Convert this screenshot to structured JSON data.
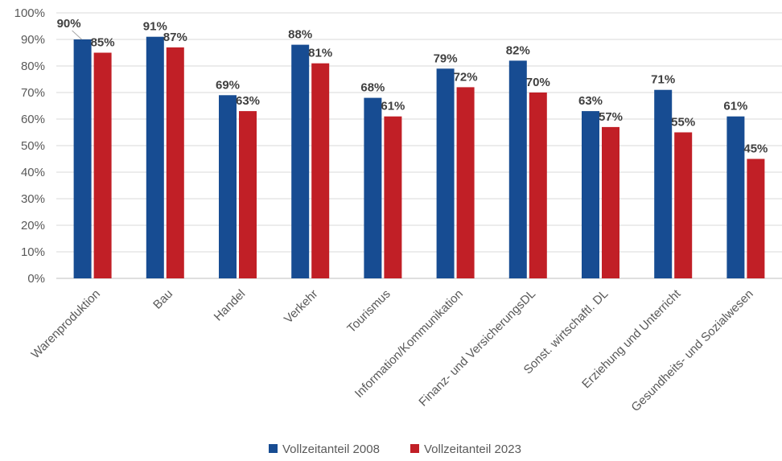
{
  "chart_data": {
    "type": "bar",
    "categories": [
      "Warenproduktion",
      "Bau",
      "Handel",
      "Verkehr",
      "Tourismus",
      "Information/Kommunikation",
      "Finanz- und VersicherungsDL",
      "Sonst. wirtschaftl. DL",
      "Erziehung und Unterricht",
      "Gesundheits- und Sozialwesen"
    ],
    "series": [
      {
        "name": "Vollzeitanteil 2008",
        "color": "#174C92",
        "values": [
          90,
          91,
          69,
          88,
          68,
          79,
          82,
          63,
          71,
          61
        ],
        "labels": [
          "90%",
          "91%",
          "69%",
          "88%",
          "68%",
          "79%",
          "82%",
          "63%",
          "71%",
          "61%"
        ]
      },
      {
        "name": "Vollzeitanteil 2023",
        "color": "#C11F26",
        "values": [
          85,
          87,
          63,
          81,
          61,
          72,
          70,
          57,
          55,
          45
        ],
        "labels": [
          "85%",
          "87%",
          "63%",
          "81%",
          "61%",
          "72%",
          "70%",
          "57%",
          "55%",
          "45%"
        ]
      }
    ],
    "ylim": [
      0,
      100
    ],
    "yticks": [
      "0%",
      "10%",
      "20%",
      "30%",
      "40%",
      "50%",
      "60%",
      "70%",
      "80%",
      "90%",
      "100%"
    ],
    "grid": true,
    "legend": "bottom",
    "title": "",
    "xlabel": "",
    "ylabel": ""
  }
}
